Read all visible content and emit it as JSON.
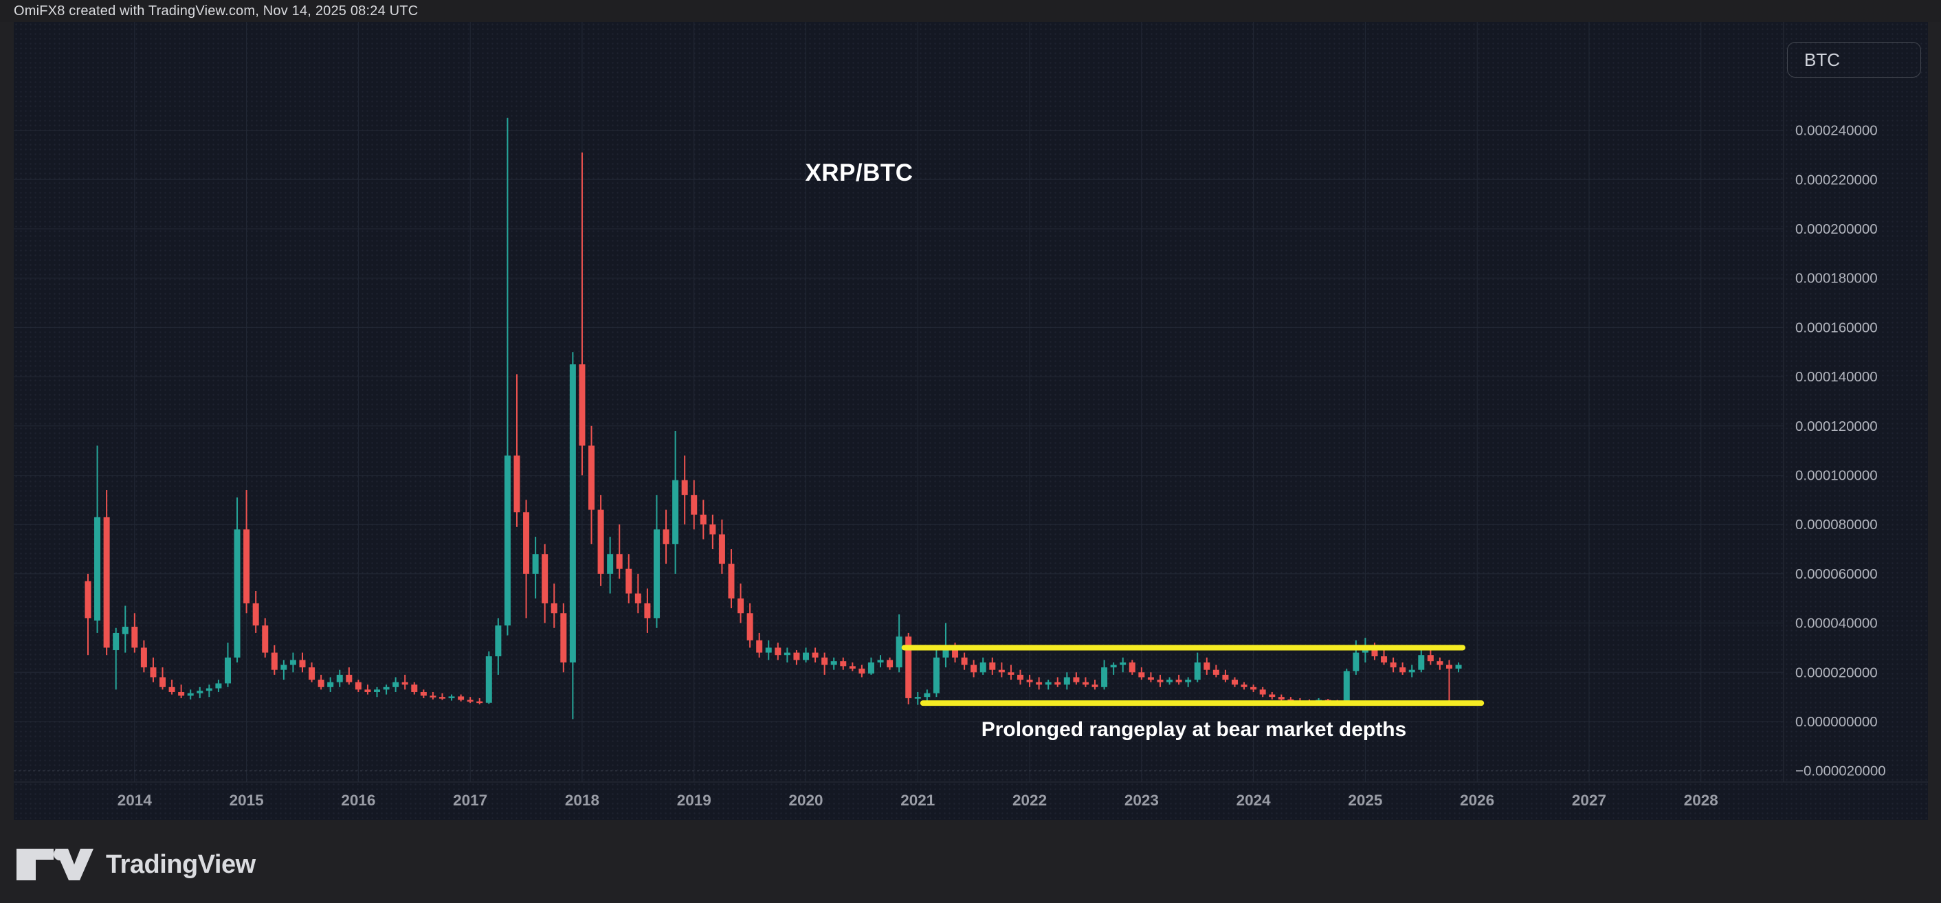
{
  "header": {
    "attribution": "OmiFX8 created with TradingView.com, Nov 14, 2025 08:24 UTC"
  },
  "axis_button": {
    "label": "BTC"
  },
  "footer": {
    "brand": "TradingView"
  },
  "chart_data": {
    "type": "candlestick",
    "title": "XRP/BTC",
    "annotation": "Prolonged rangeplay at bear market depths",
    "interval": "1M",
    "series_start": "2013-08",
    "price_unit_multiplier": 1e-06,
    "x_ticks": [
      2014,
      2015,
      2016,
      2017,
      2018,
      2019,
      2020,
      2021,
      2022,
      2023,
      2024,
      2025,
      2026,
      2027,
      2028
    ],
    "y_ticks": [
      240,
      220,
      200,
      180,
      160,
      140,
      120,
      100,
      80,
      60,
      40,
      20,
      0,
      -20
    ],
    "ylim": [
      -25,
      284
    ],
    "grid": true,
    "colors": {
      "up": "#26A69A",
      "down": "#EF5350",
      "background": "#141823",
      "grid": "#232936",
      "grid_dashed": "#3a3f4c",
      "axis_text": "#b2b5be",
      "year_text": "#9a9da6",
      "border": "#2a2e39",
      "range_line": "#F5EC23",
      "annotation_text": "#ffffff"
    },
    "range_lines": [
      {
        "name": "range-top",
        "price": 30,
        "from": "2020-12",
        "to": "2025-11"
      },
      {
        "name": "range-bottom",
        "price": 7.5,
        "from": "2021-02",
        "to": "2026-01"
      }
    ],
    "candles": [
      [
        57,
        60,
        27,
        42
      ],
      [
        41,
        112,
        36,
        83
      ],
      [
        83,
        94,
        27,
        30
      ],
      [
        29,
        38,
        13,
        36
      ],
      [
        35.5,
        47,
        28,
        38.5
      ],
      [
        38.5,
        44,
        28,
        30
      ],
      [
        30,
        33,
        20,
        22
      ],
      [
        22,
        26,
        16,
        18
      ],
      [
        18,
        22,
        13,
        14
      ],
      [
        14,
        17,
        11,
        12
      ],
      [
        12,
        15,
        9.5,
        10.5
      ],
      [
        10.5,
        13,
        9,
        11.5
      ],
      [
        11.5,
        14,
        9.5,
        12.5
      ],
      [
        12.5,
        15,
        10,
        13.5
      ],
      [
        13.5,
        17,
        12,
        15.5
      ],
      [
        15.5,
        32,
        14,
        26
      ],
      [
        26,
        91,
        24,
        78
      ],
      [
        78,
        94,
        44,
        48
      ],
      [
        48,
        53,
        36,
        39
      ],
      [
        39,
        42,
        26,
        28
      ],
      [
        28,
        31,
        19,
        21
      ],
      [
        21,
        25,
        17,
        23
      ],
      [
        23,
        28,
        20,
        25
      ],
      [
        25,
        28,
        20,
        22
      ],
      [
        22,
        24,
        16,
        17
      ],
      [
        17,
        19,
        13,
        14
      ],
      [
        14,
        18,
        12,
        16
      ],
      [
        16,
        21,
        14,
        19
      ],
      [
        19,
        22,
        15,
        16
      ],
      [
        16,
        17,
        12,
        13
      ],
      [
        13,
        15,
        11,
        12
      ],
      [
        12,
        14,
        10,
        13
      ],
      [
        13,
        15,
        11,
        14
      ],
      [
        14,
        18,
        12,
        16
      ],
      [
        16,
        19,
        13,
        15
      ],
      [
        15,
        16,
        11,
        12
      ],
      [
        12,
        13,
        9.5,
        10.5
      ],
      [
        10.5,
        12,
        9,
        10
      ],
      [
        10,
        11.5,
        8.8,
        9.5
      ],
      [
        9.5,
        11,
        8.5,
        10.2
      ],
      [
        10.2,
        11,
        8.2,
        8.8
      ],
      [
        8.8,
        10,
        7.5,
        8.2
      ],
      [
        8.2,
        9.5,
        7,
        7.6
      ],
      [
        7.6,
        28.5,
        7.2,
        26.5
      ],
      [
        26.5,
        42,
        19,
        39
      ],
      [
        39,
        245,
        35,
        108
      ],
      [
        108,
        141,
        79,
        85
      ],
      [
        85,
        90,
        42,
        60
      ],
      [
        60,
        75,
        50,
        68
      ],
      [
        68,
        72,
        40,
        48
      ],
      [
        48,
        56,
        38,
        44
      ],
      [
        44,
        48,
        20,
        24
      ],
      [
        24,
        150,
        1,
        145
      ],
      [
        145,
        231,
        100,
        112
      ],
      [
        112,
        120,
        72,
        86
      ],
      [
        86,
        92,
        55,
        60
      ],
      [
        60,
        75,
        52,
        68
      ],
      [
        68,
        80,
        58,
        62
      ],
      [
        62,
        68,
        48,
        52
      ],
      [
        52,
        60,
        44,
        48
      ],
      [
        48,
        54,
        36,
        42
      ],
      [
        42,
        92,
        38,
        78
      ],
      [
        78,
        86,
        64,
        72
      ],
      [
        72,
        118,
        60,
        98
      ],
      [
        98,
        108,
        80,
        92
      ],
      [
        92,
        98,
        78,
        84
      ],
      [
        84,
        90,
        74,
        80
      ],
      [
        80,
        84,
        70,
        76
      ],
      [
        76,
        82,
        60,
        64
      ],
      [
        64,
        70,
        46,
        50
      ],
      [
        50,
        56,
        40,
        44
      ],
      [
        44,
        48,
        30,
        33
      ],
      [
        33,
        36,
        26,
        28
      ],
      [
        28,
        33,
        25,
        30
      ],
      [
        30,
        32,
        25,
        27
      ],
      [
        27,
        30,
        24,
        28
      ],
      [
        28,
        29,
        23,
        25
      ],
      [
        25,
        30,
        24,
        28
      ],
      [
        28,
        30,
        24,
        26
      ],
      [
        26,
        28,
        19,
        23
      ],
      [
        23,
        26,
        21,
        24.5
      ],
      [
        24.5,
        26,
        21,
        22.5
      ],
      [
        22.5,
        24,
        20.5,
        21.5
      ],
      [
        21.5,
        23,
        18,
        19.5
      ],
      [
        19.5,
        26,
        19,
        24
      ],
      [
        24,
        27,
        22,
        25
      ],
      [
        25,
        26,
        21,
        22
      ],
      [
        22,
        43.5,
        20,
        34.5
      ],
      [
        34.5,
        36,
        7,
        9.5
      ],
      [
        9.5,
        12,
        6.8,
        10
      ],
      [
        10,
        13,
        8,
        11.5
      ],
      [
        11.5,
        30,
        10,
        26
      ],
      [
        26,
        40,
        22,
        29
      ],
      [
        29,
        32,
        24,
        26
      ],
      [
        26,
        28,
        21,
        23
      ],
      [
        23,
        25,
        18,
        20
      ],
      [
        20,
        26,
        19,
        24
      ],
      [
        24,
        26,
        19,
        21
      ],
      [
        21,
        24,
        18,
        20
      ],
      [
        20,
        23,
        17,
        19
      ],
      [
        19,
        21,
        15,
        17
      ],
      [
        17,
        19,
        14,
        16
      ],
      [
        16,
        18,
        13,
        15
      ],
      [
        15,
        17,
        13,
        16
      ],
      [
        16,
        18,
        14,
        15
      ],
      [
        15,
        20,
        13,
        18
      ],
      [
        18,
        20,
        15,
        16
      ],
      [
        16,
        18,
        14,
        15
      ],
      [
        15,
        17,
        13,
        14
      ],
      [
        14,
        25,
        13,
        22
      ],
      [
        22,
        24,
        19,
        23
      ],
      [
        23,
        26,
        20,
        24
      ],
      [
        24,
        25,
        19,
        20
      ],
      [
        20,
        22,
        17,
        18
      ],
      [
        18,
        20,
        16,
        17
      ],
      [
        17,
        19,
        14,
        16
      ],
      [
        16,
        18,
        15,
        17
      ],
      [
        17,
        19,
        15,
        16
      ],
      [
        16,
        18,
        14,
        17
      ],
      [
        17,
        28,
        16,
        24
      ],
      [
        24,
        26,
        19,
        21
      ],
      [
        21,
        23,
        18,
        19
      ],
      [
        19,
        21,
        16,
        17
      ],
      [
        17,
        18,
        14,
        15
      ],
      [
        15,
        16,
        13,
        14
      ],
      [
        14,
        15,
        12,
        13
      ],
      [
        13,
        14,
        10,
        11
      ],
      [
        11,
        12,
        9,
        10
      ],
      [
        10,
        11,
        8.5,
        9
      ],
      [
        9,
        10,
        8,
        8.5
      ],
      [
        8.5,
        9.5,
        7.8,
        8.2
      ],
      [
        8.2,
        9,
        7.6,
        8
      ],
      [
        8,
        9.5,
        7.6,
        8.8
      ],
      [
        8.8,
        9.2,
        7.7,
        8
      ],
      [
        8,
        8.8,
        7.4,
        7.8
      ],
      [
        7.8,
        21.5,
        7.5,
        20.5
      ],
      [
        20.5,
        33,
        19,
        28
      ],
      [
        28,
        34,
        24,
        30
      ],
      [
        30,
        32,
        25,
        26.5
      ],
      [
        26.5,
        31,
        23,
        24
      ],
      [
        24,
        26,
        20,
        22
      ],
      [
        22,
        24,
        19,
        20
      ],
      [
        20,
        23,
        18,
        21
      ],
      [
        21,
        30,
        20,
        27
      ],
      [
        27,
        29,
        23,
        24.5
      ],
      [
        24.5,
        26,
        21,
        23
      ],
      [
        23,
        25,
        7.8,
        21.5
      ],
      [
        21.5,
        24,
        20,
        23
      ]
    ]
  }
}
